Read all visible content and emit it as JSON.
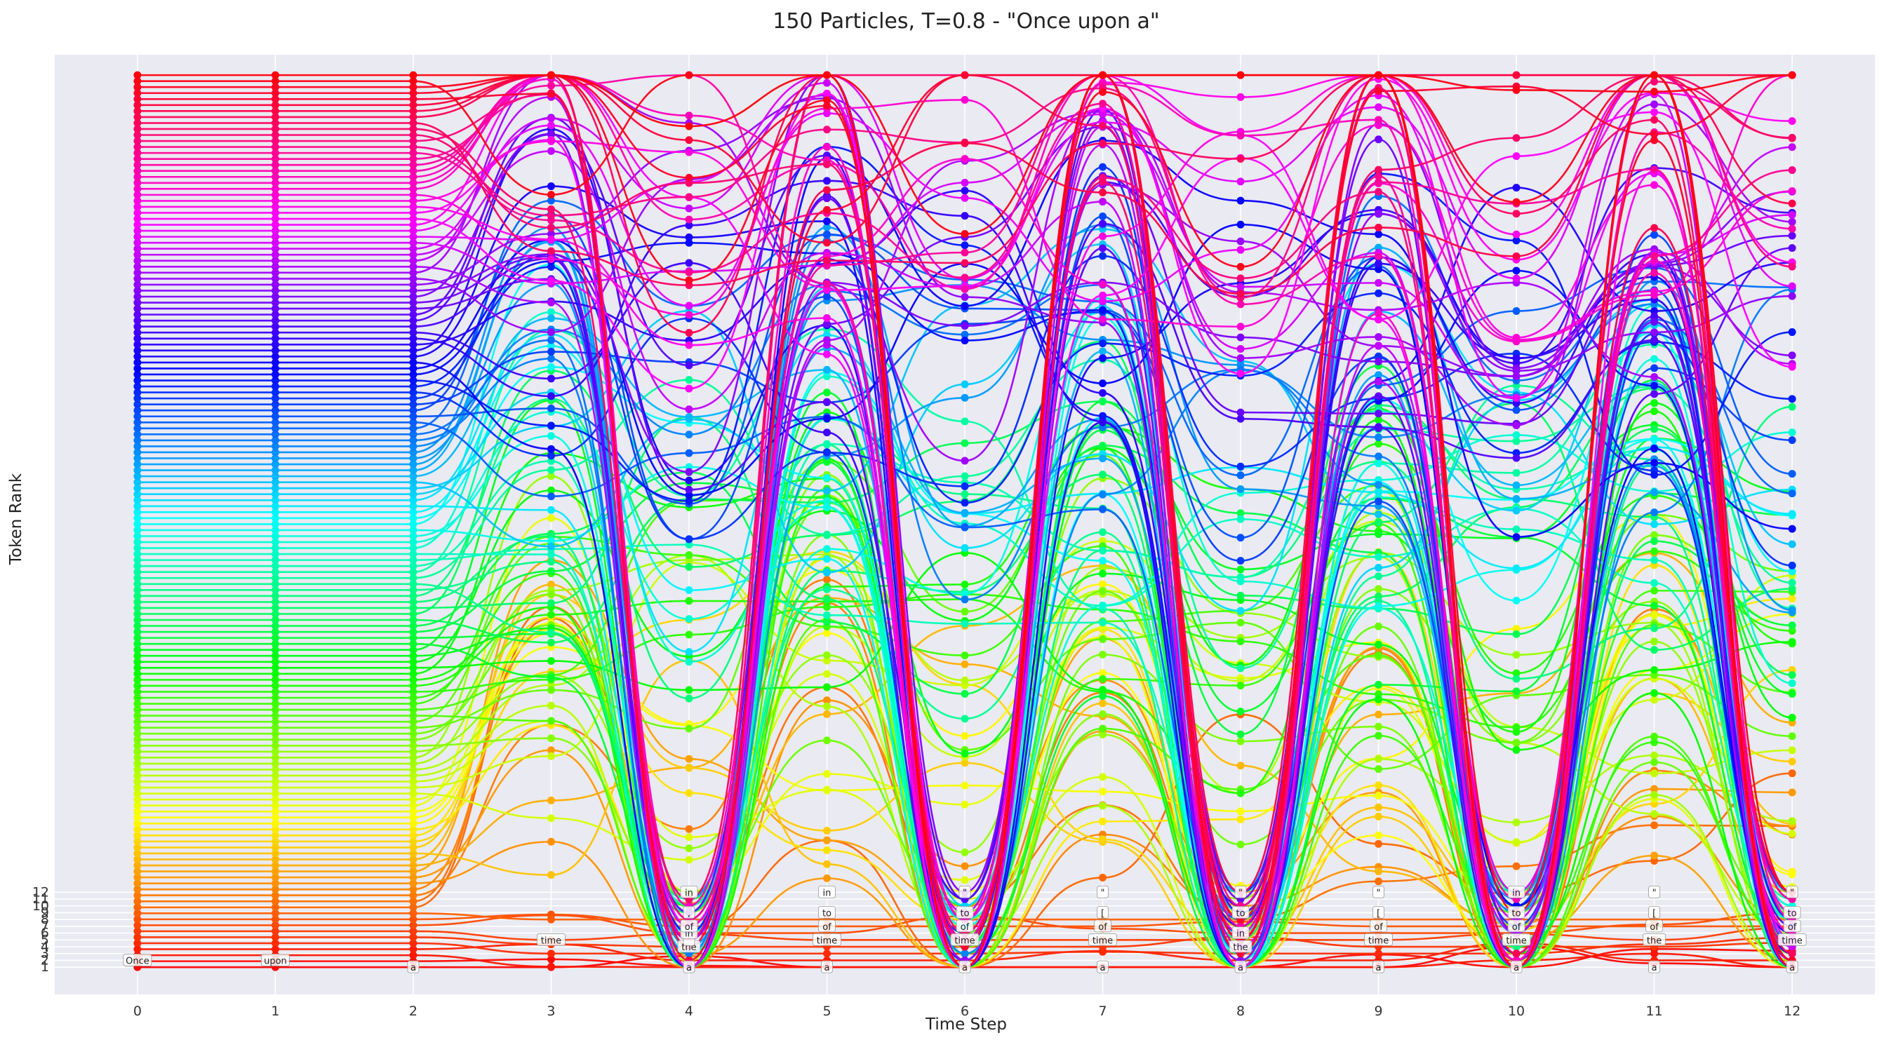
{
  "chart_data": {
    "type": "line",
    "title": "150 Particles, T=0.8 - \"Once upon a\"",
    "xlabel": "Time Step",
    "ylabel": "Token Rank",
    "x": [
      0,
      1,
      2,
      3,
      4,
      5,
      6,
      7,
      8,
      9,
      10,
      11,
      12
    ],
    "xlim": [
      -0.6,
      12.6
    ],
    "ylim": [
      -3,
      135
    ],
    "y_ticks": [
      1,
      2,
      3,
      4,
      5,
      6,
      7,
      8,
      9,
      10,
      11,
      12
    ],
    "grid": true,
    "particle_count": 150,
    "colormap": "hsv (particle index 0–149)",
    "colors": {
      "background": "#eaeaf2",
      "grid": "#ffffff",
      "text": "#222222"
    },
    "trajectories_note": "Particles share token ranks at steps 0–2 (fanned by particle index), then diverge and oscillate between low ranks (1–12) and high ranks (up to ~130) on alternating steps.",
    "annotations": [
      {
        "x": 0,
        "y": 2,
        "text": "Once"
      },
      {
        "x": 1,
        "y": 2,
        "text": "upon"
      },
      {
        "x": 2,
        "y": 1,
        "text": "a"
      },
      {
        "x": 3,
        "y": 5,
        "text": "time"
      },
      {
        "x": 4,
        "y": 1,
        "text": "a"
      },
      {
        "x": 4,
        "y": 4,
        "text": "the"
      },
      {
        "x": 4,
        "y": 5,
        "text": "\""
      },
      {
        "x": 4,
        "y": 6,
        "text": "in"
      },
      {
        "x": 4,
        "y": 7,
        "text": "of"
      },
      {
        "x": 4,
        "y": 9,
        "text": ","
      },
      {
        "x": 4,
        "y": 12,
        "text": "in"
      },
      {
        "x": 5,
        "y": 1,
        "text": "a"
      },
      {
        "x": 5,
        "y": 5,
        "text": "time"
      },
      {
        "x": 5,
        "y": 7,
        "text": "of"
      },
      {
        "x": 5,
        "y": 9,
        "text": "to"
      },
      {
        "x": 5,
        "y": 12,
        "text": "in"
      },
      {
        "x": 6,
        "y": 1,
        "text": "a"
      },
      {
        "x": 6,
        "y": 5,
        "text": "time"
      },
      {
        "x": 6,
        "y": 7,
        "text": "of"
      },
      {
        "x": 6,
        "y": 9,
        "text": "to"
      },
      {
        "x": 6,
        "y": 12,
        "text": "\""
      },
      {
        "x": 7,
        "y": 1,
        "text": "a"
      },
      {
        "x": 7,
        "y": 5,
        "text": "time"
      },
      {
        "x": 7,
        "y": 7,
        "text": "of"
      },
      {
        "x": 7,
        "y": 9,
        "text": "["
      },
      {
        "x": 7,
        "y": 12,
        "text": "\""
      },
      {
        "x": 8,
        "y": 1,
        "text": "a"
      },
      {
        "x": 8,
        "y": 4,
        "text": "the"
      },
      {
        "x": 8,
        "y": 6,
        "text": "in"
      },
      {
        "x": 8,
        "y": 9,
        "text": "to"
      },
      {
        "x": 8,
        "y": 12,
        "text": "\""
      },
      {
        "x": 9,
        "y": 1,
        "text": "a"
      },
      {
        "x": 9,
        "y": 5,
        "text": "time"
      },
      {
        "x": 9,
        "y": 7,
        "text": "of"
      },
      {
        "x": 9,
        "y": 9,
        "text": "["
      },
      {
        "x": 9,
        "y": 12,
        "text": "\""
      },
      {
        "x": 10,
        "y": 1,
        "text": "a"
      },
      {
        "x": 10,
        "y": 5,
        "text": "time"
      },
      {
        "x": 10,
        "y": 7,
        "text": "of"
      },
      {
        "x": 10,
        "y": 9,
        "text": "to"
      },
      {
        "x": 10,
        "y": 12,
        "text": "in"
      },
      {
        "x": 11,
        "y": 1,
        "text": "a"
      },
      {
        "x": 11,
        "y": 5,
        "text": "the"
      },
      {
        "x": 11,
        "y": 7,
        "text": "of"
      },
      {
        "x": 11,
        "y": 9,
        "text": "["
      },
      {
        "x": 11,
        "y": 12,
        "text": "\""
      },
      {
        "x": 12,
        "y": 1,
        "text": "a"
      },
      {
        "x": 12,
        "y": 5,
        "text": "time"
      },
      {
        "x": 12,
        "y": 7,
        "text": "of"
      },
      {
        "x": 12,
        "y": 9,
        "text": "to"
      },
      {
        "x": 12,
        "y": 12,
        "text": "\""
      }
    ]
  }
}
